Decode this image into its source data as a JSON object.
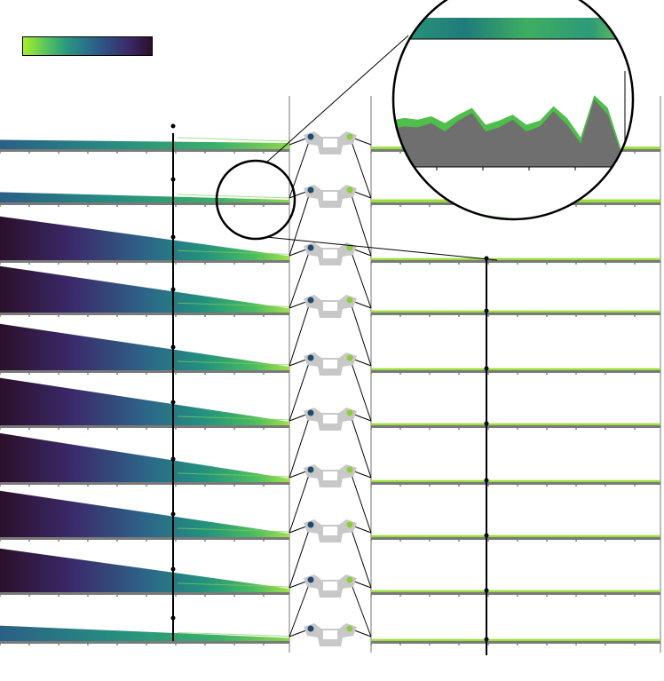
{
  "colorbar": {
    "colormap": "viridis-like",
    "stops": [
      "#a8ef2a",
      "#5cc75a",
      "#2a9a7e",
      "#2a6f8a",
      "#31497f",
      "#3d2766",
      "#2a0f2a"
    ]
  },
  "colors": {
    "left_profile_gradient": [
      "#3a1236",
      "#3c3a7a",
      "#2a6b8b",
      "#239a80",
      "#56c45e",
      "#a6e34a"
    ],
    "right_profile_fill": "#4dbf4a",
    "right_profile_edge": "#9ae03a",
    "baseline_gray": "#7a7a7a",
    "vertebra_gray": "#c8c8c8",
    "line": "#000000"
  },
  "rows": [
    {
      "index": 1,
      "left_start": 0.18,
      "left_end": 0.12,
      "right_level": 0.05
    },
    {
      "index": 2,
      "left_start": 0.2,
      "left_end": 0.05,
      "right_level": 0.06
    },
    {
      "index": 3,
      "left_start": 0.85,
      "left_end": 0.08,
      "right_level": 0.04
    },
    {
      "index": 4,
      "left_start": 0.9,
      "left_end": 0.08,
      "right_level": 0.04
    },
    {
      "index": 5,
      "left_start": 0.9,
      "left_end": 0.07,
      "right_level": 0.04
    },
    {
      "index": 6,
      "left_start": 0.92,
      "left_end": 0.07,
      "right_level": 0.04
    },
    {
      "index": 7,
      "left_start": 0.95,
      "left_end": 0.07,
      "right_level": 0.04
    },
    {
      "index": 8,
      "left_start": 0.9,
      "left_end": 0.07,
      "right_level": 0.04
    },
    {
      "index": 9,
      "left_start": 0.85,
      "left_end": 0.07,
      "right_level": 0.04
    },
    {
      "index": 10,
      "left_start": 0.3,
      "left_end": 0.06,
      "right_level": 0.04
    }
  ],
  "zoom_inset": {
    "profile_green": [
      0.55,
      0.58,
      0.56,
      0.6,
      0.52,
      0.62,
      0.7,
      0.5,
      0.55,
      0.62,
      0.5,
      0.55,
      0.72,
      0.58,
      0.35,
      0.85,
      0.7,
      0.2
    ],
    "profile_gray": [
      0.45,
      0.48,
      0.47,
      0.52,
      0.42,
      0.55,
      0.64,
      0.42,
      0.47,
      0.56,
      0.42,
      0.48,
      0.66,
      0.5,
      0.28,
      0.8,
      0.62,
      0.15
    ]
  }
}
